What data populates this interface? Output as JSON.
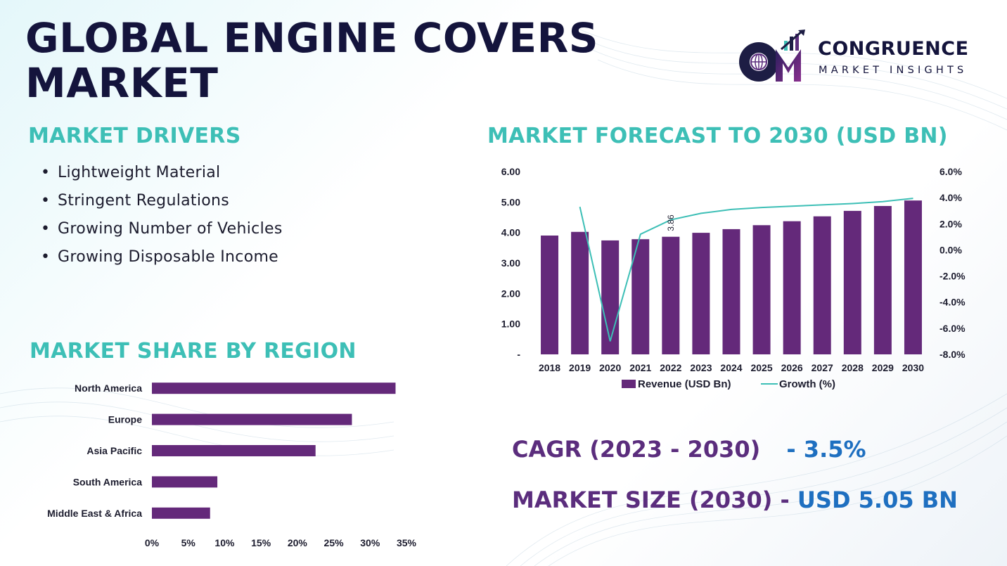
{
  "title_line1": "GLOBAL ENGINE COVERS",
  "title_line2": "MARKET",
  "logo": {
    "name": "CONGRUENCE",
    "tagline": "MARKET INSIGHTS",
    "icon": "cmi-logo-icon"
  },
  "drivers": {
    "heading": "MARKET DRIVERS",
    "items": [
      "Lightweight Material",
      "Stringent Regulations",
      "Growing Number of Vehicles",
      "Growing Disposable Income"
    ]
  },
  "forecast_heading": "MARKET FORECAST TO 2030 (USD BN)",
  "region_heading": "MARKET SHARE BY REGION",
  "stats": {
    "cagr_label": "CAGR (2023 - 2030)",
    "cagr_value": "- 3.5%",
    "size_label": "MARKET SIZE (2030) -",
    "size_value": "USD 5.05 BN"
  },
  "colors": {
    "bar": "#64297a",
    "line": "#3dbfb6",
    "heading": "#3dbfb6",
    "title": "#14143c",
    "stat_label": "#5b2d7d",
    "stat_value": "#1e6fc0"
  },
  "chart_data": [
    {
      "type": "bar",
      "categories": [
        "2018",
        "2019",
        "2020",
        "2021",
        "2022",
        "2023",
        "2024",
        "2025",
        "2026",
        "2027",
        "2028",
        "2029",
        "2030"
      ],
      "series": [
        {
          "name": "Revenue (USD Bn)",
          "type": "bar",
          "axis": "left",
          "values": [
            3.9,
            4.02,
            3.74,
            3.78,
            3.86,
            3.99,
            4.11,
            4.24,
            4.37,
            4.53,
            4.71,
            4.87,
            5.05
          ]
        },
        {
          "name": "Growth (%)",
          "type": "line",
          "axis": "right",
          "values": [
            null,
            3.3,
            -7.0,
            1.2,
            2.3,
            2.8,
            3.1,
            3.25,
            3.35,
            3.45,
            3.55,
            3.7,
            3.95
          ]
        }
      ],
      "data_labels": [
        {
          "category": "2022",
          "text": "3.86"
        }
      ],
      "yticks_left": [
        "6.00",
        "5.00",
        "4.00",
        "3.00",
        "2.00",
        "1.00",
        "-"
      ],
      "ylim_left": [
        0,
        6
      ],
      "yticks_right": [
        "6.0%",
        "4.0%",
        "2.0%",
        "0.0%",
        "-2.0%",
        "-4.0%",
        "-6.0%",
        "-8.0%"
      ],
      "ylim_right": [
        -8,
        6
      ],
      "legend": "bottom",
      "grid": false
    },
    {
      "type": "bar",
      "orientation": "horizontal",
      "categories": [
        "North America",
        "Europe",
        "Asia Pacific",
        "South America",
        "Middle East & Africa"
      ],
      "values": [
        33.5,
        27.5,
        22.5,
        9,
        8
      ],
      "xticks": [
        "0%",
        "5%",
        "10%",
        "15%",
        "20%",
        "25%",
        "30%",
        "35%"
      ],
      "xlim": [
        0,
        35
      ],
      "grid": false
    }
  ]
}
